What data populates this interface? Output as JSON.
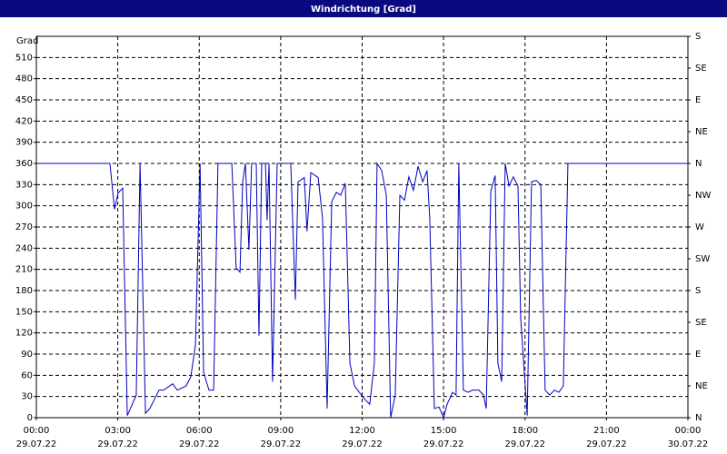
{
  "chart_data": {
    "type": "line",
    "title": "Windrichtung [Grad]",
    "y_label": "Grad",
    "x": [
      0,
      2.71,
      2.88,
      3.01,
      3.18,
      3.35,
      3.68,
      3.82,
      4.02,
      4.18,
      4.52,
      4.69,
      5.02,
      5.19,
      5.52,
      5.69,
      5.86,
      6.03,
      6.16,
      6.36,
      6.53,
      6.69,
      7.2,
      7.36,
      7.5,
      7.6,
      7.7,
      7.83,
      7.93,
      8.1,
      8.2,
      8.3,
      8.44,
      8.5,
      8.57,
      8.7,
      8.87,
      9.37,
      9.54,
      9.64,
      9.87,
      9.97,
      10.11,
      10.38,
      10.54,
      10.71,
      10.88,
      11.05,
      11.21,
      11.38,
      11.55,
      11.72,
      12.05,
      12.28,
      12.45,
      12.55,
      12.72,
      12.89,
      13.05,
      13.22,
      13.39,
      13.56,
      13.72,
      13.89,
      14.06,
      14.23,
      14.39,
      14.49,
      14.66,
      14.83,
      15.0,
      15.13,
      15.33,
      15.46,
      15.56,
      15.73,
      15.9,
      16.07,
      16.3,
      16.47,
      16.57,
      16.74,
      16.9,
      17.0,
      17.14,
      17.27,
      17.41,
      17.57,
      17.74,
      17.84,
      18.08,
      18.24,
      18.41,
      18.58,
      18.74,
      18.91,
      19.08,
      19.25,
      19.41,
      19.58,
      24
    ],
    "series": [
      {
        "color": "#0000c0",
        "values": [
          360,
          360,
          295,
          318,
          325,
          3,
          32,
          360,
          6,
          13,
          39,
          39,
          48,
          39,
          45,
          58,
          103,
          360,
          64,
          39,
          39,
          360,
          360,
          212,
          206,
          334,
          360,
          238,
          360,
          360,
          116,
          360,
          360,
          280,
          360,
          51,
          360,
          360,
          167,
          334,
          340,
          264,
          347,
          340,
          283,
          13,
          306,
          319,
          315,
          332,
          77,
          45,
          28,
          19,
          77,
          360,
          350,
          315,
          0,
          32,
          315,
          308,
          341,
          322,
          356,
          334,
          350,
          283,
          13,
          15,
          0,
          19,
          36,
          32,
          360,
          39,
          36,
          39,
          39,
          32,
          13,
          321,
          343,
          77,
          51,
          360,
          328,
          341,
          328,
          141,
          3,
          334,
          336,
          330,
          39,
          32,
          39,
          36,
          45,
          360,
          360
        ]
      }
    ],
    "xlim": [
      0,
      24
    ],
    "xticks": [
      {
        "value": 0,
        "label": "00:00"
      },
      {
        "value": 3,
        "label": "03:00"
      },
      {
        "value": 6,
        "label": "06:00"
      },
      {
        "value": 9,
        "label": "09:00"
      },
      {
        "value": 12,
        "label": "12:00"
      },
      {
        "value": 15,
        "label": "15:00"
      },
      {
        "value": 18,
        "label": "18:00"
      },
      {
        "value": 21,
        "label": "21:00"
      },
      {
        "value": 24,
        "label": "00:00"
      }
    ],
    "xtick_dates": [
      "29.07.22",
      "29.07.22",
      "29.07.22",
      "29.07.22",
      "29.07.22",
      "29.07.22",
      "29.07.22",
      "29.07.22",
      "30.07.22"
    ],
    "ylim": [
      0,
      540
    ],
    "yticks": [
      0,
      30,
      60,
      90,
      120,
      150,
      180,
      210,
      240,
      270,
      300,
      330,
      360,
      390,
      420,
      450,
      480,
      510
    ],
    "y2lim": [
      0,
      540
    ],
    "y2ticks": [
      {
        "value": 0,
        "label": "N"
      },
      {
        "value": 45,
        "label": "NE"
      },
      {
        "value": 90,
        "label": "E"
      },
      {
        "value": 135,
        "label": "SE"
      },
      {
        "value": 180,
        "label": "S"
      },
      {
        "value": 225,
        "label": "SW"
      },
      {
        "value": 270,
        "label": "W"
      },
      {
        "value": 315,
        "label": "NW"
      },
      {
        "value": 360,
        "label": "N"
      },
      {
        "value": 405,
        "label": "NE"
      },
      {
        "value": 450,
        "label": "E"
      },
      {
        "value": 495,
        "label": "SE"
      },
      {
        "value": 540,
        "label": "S"
      }
    ],
    "grid": true
  }
}
